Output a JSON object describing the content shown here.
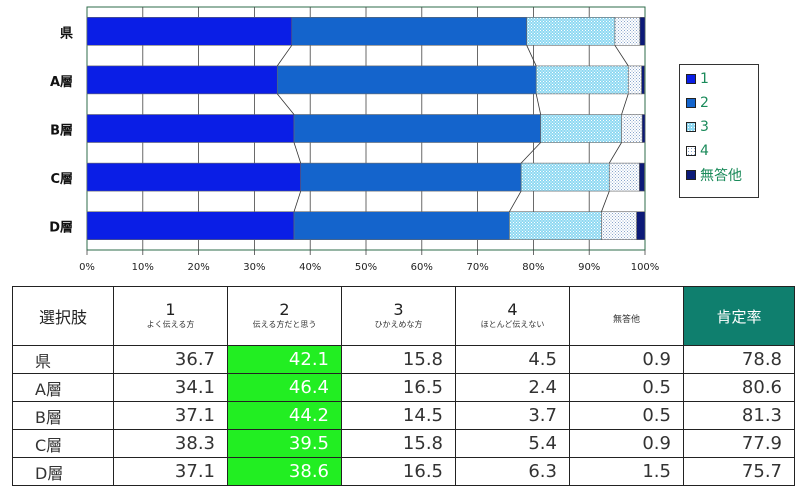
{
  "chart_data": {
    "type": "bar",
    "orientation": "horizontal",
    "stacked": true,
    "categories": [
      "県",
      "A層",
      "B層",
      "C層",
      "D層"
    ],
    "series": [
      {
        "name": "1",
        "values": [
          36.7,
          34.1,
          37.1,
          38.3,
          37.1
        ],
        "color": "#0a1ee6"
      },
      {
        "name": "2",
        "values": [
          42.1,
          46.4,
          44.2,
          39.5,
          38.6
        ],
        "color": "#1464cc"
      },
      {
        "name": "3",
        "values": [
          15.8,
          16.5,
          14.5,
          15.8,
          16.5
        ],
        "color": "#8ed8f2"
      },
      {
        "name": "4",
        "values": [
          4.5,
          2.4,
          3.7,
          5.4,
          6.3
        ],
        "color": "#d6e4f4"
      },
      {
        "name": "無答他",
        "values": [
          0.9,
          0.5,
          0.5,
          0.9,
          1.5
        ],
        "color": "#0c1a78"
      }
    ],
    "xlim": [
      0,
      100
    ],
    "xticks": [
      "0%",
      "10%",
      "20%",
      "30%",
      "40%",
      "50%",
      "60%",
      "70%",
      "80%",
      "90%",
      "100%"
    ],
    "legend_position": "right",
    "grid": true
  },
  "table": {
    "header_first": "選択肢",
    "columns": [
      {
        "num": "1",
        "sub": "よく伝える方"
      },
      {
        "num": "2",
        "sub": "伝える方だと思う"
      },
      {
        "num": "3",
        "sub": "ひかえめな方"
      },
      {
        "num": "4",
        "sub": "ほとんど伝えない"
      },
      {
        "num": "",
        "sub": "無答他"
      }
    ],
    "rate_header": "肯定率",
    "rows": [
      {
        "label": "県",
        "values": [
          "36.7",
          "42.1",
          "15.8",
          "4.5",
          "0.9"
        ],
        "rate": "78.8"
      },
      {
        "label": "A層",
        "values": [
          "34.1",
          "46.4",
          "16.5",
          "2.4",
          "0.5"
        ],
        "rate": "80.6"
      },
      {
        "label": "B層",
        "values": [
          "37.1",
          "44.2",
          "14.5",
          "3.7",
          "0.5"
        ],
        "rate": "81.3"
      },
      {
        "label": "C層",
        "values": [
          "38.3",
          "39.5",
          "15.8",
          "5.4",
          "0.9"
        ],
        "rate": "77.9"
      },
      {
        "label": "D層",
        "values": [
          "37.1",
          "38.6",
          "16.5",
          "6.3",
          "1.5"
        ],
        "rate": "75.7"
      }
    ],
    "highlight_column": 1,
    "highlight_color": "#22ee22",
    "rate_header_color": "#0f7f6e"
  }
}
